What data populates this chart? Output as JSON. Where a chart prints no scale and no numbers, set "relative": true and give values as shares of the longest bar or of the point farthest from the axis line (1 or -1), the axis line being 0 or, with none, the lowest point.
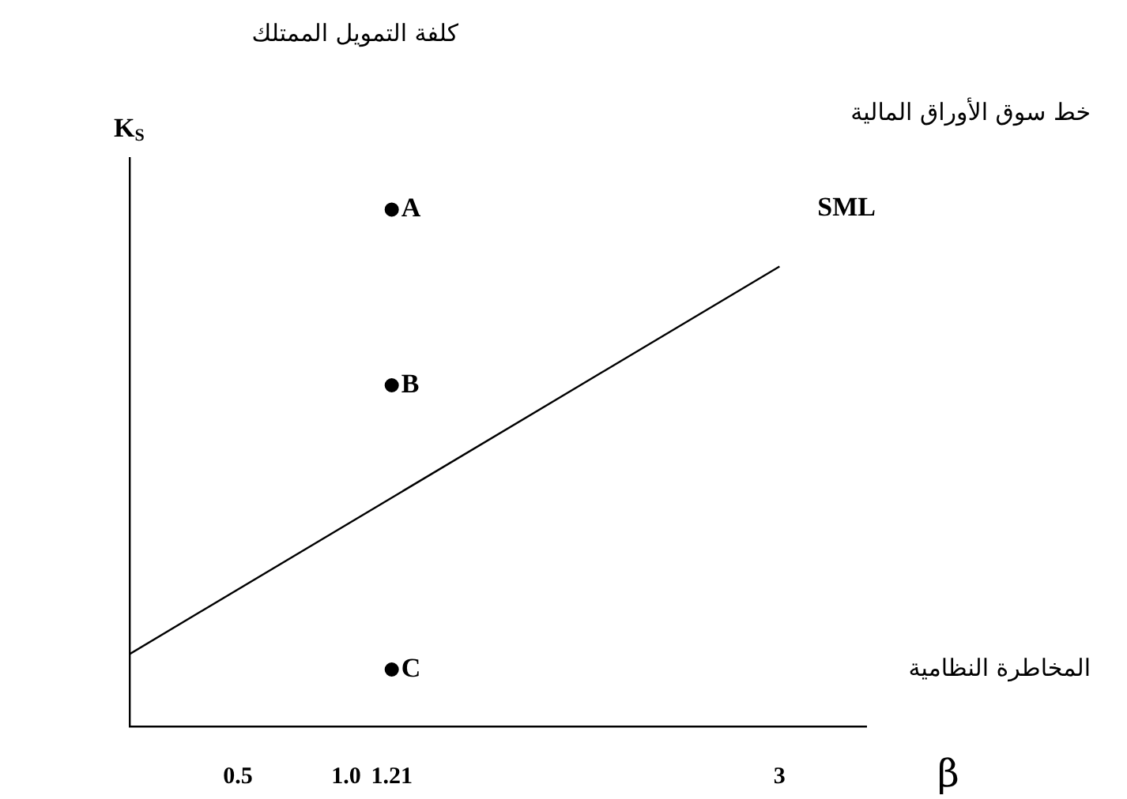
{
  "chart_data": {
    "type": "line",
    "relative": true,
    "xlabel": "β",
    "ylabel": "K$_{S}$",
    "xlim": [
      0,
      3.4
    ],
    "xticks": [
      0.5,
      {
        "value": 1,
        "label": "1.0"
      },
      1.21,
      3
    ],
    "tick_labels": "x",
    "grid": false,
    "legend": false,
    "series": [
      {
        "type": "line",
        "color": "#000000",
        "marker": "none",
        "x": [
          0,
          3
        ],
        "values": [
          0.14,
          0.89
        ]
      },
      {
        "type": "scatter",
        "name": "A",
        "color": "#000000",
        "marker": "circle",
        "x": [
          1.21
        ],
        "values": [
          1
        ]
      },
      {
        "type": "scatter",
        "name": "B",
        "color": "#000000",
        "marker": "circle",
        "x": [
          1.21
        ],
        "values": [
          0.66
        ]
      },
      {
        "type": "scatter",
        "name": "C",
        "color": "#000000",
        "marker": "circle",
        "x": [
          1.21
        ],
        "values": [
          0.11
        ]
      }
    ],
    "annotations": [
      "SML",
      "كلفة التمويل الممتلك",
      "خط سوق الأوراق المالية",
      "المخاطرة النظامية"
    ]
  }
}
